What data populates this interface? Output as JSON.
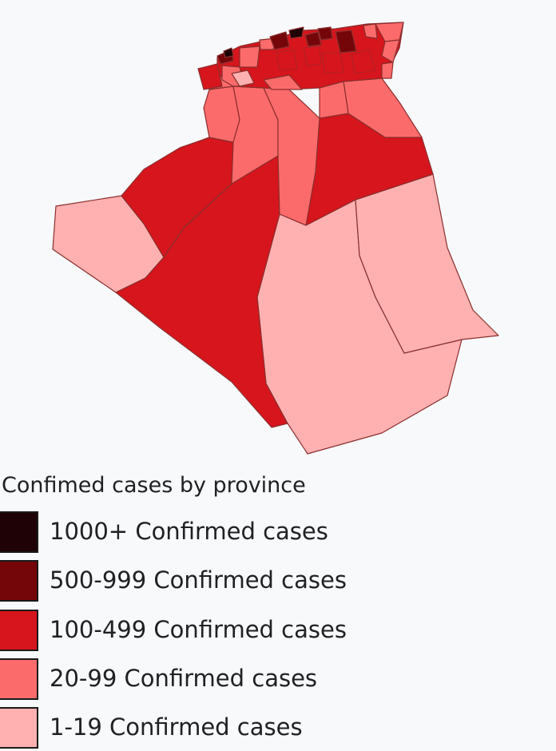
{
  "legend": {
    "title": "Confimed cases by province",
    "items": [
      {
        "label": "1000+ Confirmed cases",
        "color": "#1e0205"
      },
      {
        "label": "500-999 Confirmed cases",
        "color": "#740609"
      },
      {
        "label": "100-499 Confirmed cases",
        "color": "#d6151c"
      },
      {
        "label": "20-99 Confirmed cases",
        "color": "#fc6b6b"
      },
      {
        "label": "1-19 Confirmed cases",
        "color": "#ffb1b1"
      }
    ]
  }
}
